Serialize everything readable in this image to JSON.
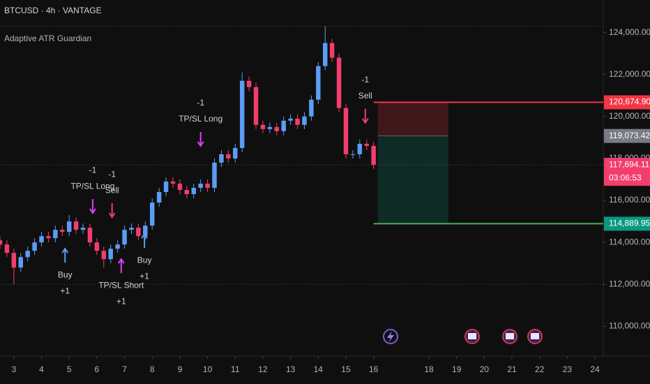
{
  "chart_data": {
    "type": "candlestick",
    "title": "BTCUSD · 4h · VANTAGE",
    "indicator": "Adaptive ATR Guardian",
    "x": [
      2.5,
      2.75,
      3,
      3.25,
      3.5,
      3.75,
      4,
      4.25,
      4.5,
      4.75,
      5,
      5.25,
      5.5,
      5.75,
      6,
      6.25,
      6.5,
      6.75,
      7,
      7.25,
      7.5,
      7.75,
      8,
      8.25,
      8.5,
      8.75,
      9,
      9.25,
      9.5,
      9.75,
      10,
      10.25,
      10.5,
      10.75,
      11,
      11.25,
      11.5,
      11.75,
      12,
      12.25,
      12.5,
      12.75,
      13,
      13.25,
      13.5,
      13.75,
      14,
      14.25,
      14.5,
      14.75,
      15,
      15.25,
      15.5,
      15.75,
      16
    ],
    "open": [
      114100,
      113900,
      113500,
      112800,
      113300,
      113600,
      114000,
      114300,
      114200,
      114600,
      114500,
      115000,
      114600,
      114700,
      114000,
      113600,
      113200,
      113700,
      113900,
      114600,
      114700,
      114300,
      114800,
      115900,
      116400,
      116900,
      116800,
      116500,
      116300,
      116600,
      116800,
      116600,
      117800,
      118200,
      118000,
      118500,
      121700,
      121400,
      119600,
      119400,
      119500,
      119300,
      119800,
      119900,
      119600,
      120000,
      120800,
      122400,
      123500,
      122800,
      120400,
      118200,
      118200,
      118700,
      118600
    ],
    "high": [
      114300,
      114100,
      113700,
      113500,
      113800,
      114200,
      114500,
      114500,
      114800,
      114800,
      115300,
      115200,
      114900,
      114900,
      114200,
      113800,
      113900,
      114100,
      114800,
      114900,
      114900,
      115000,
      116100,
      116600,
      117100,
      117100,
      117000,
      116700,
      116800,
      117000,
      117000,
      118000,
      118400,
      118400,
      118700,
      122100,
      121900,
      121600,
      119800,
      119700,
      119700,
      120000,
      120100,
      120100,
      120200,
      121000,
      122600,
      124300,
      123700,
      123000,
      120600,
      118400,
      118900,
      118900,
      118800
    ],
    "low": [
      113700,
      113300,
      112000,
      112600,
      113100,
      113400,
      113800,
      114000,
      114000,
      114300,
      114300,
      114400,
      114400,
      113800,
      113400,
      112800,
      113000,
      113500,
      113700,
      114400,
      114100,
      114100,
      114600,
      115700,
      116200,
      116600,
      116300,
      116100,
      116100,
      116400,
      116400,
      116400,
      117600,
      117800,
      117800,
      118300,
      121200,
      119400,
      119200,
      119200,
      119100,
      119100,
      119600,
      119400,
      119400,
      119800,
      120600,
      122200,
      122600,
      120200,
      118000,
      118000,
      118000,
      118400,
      117500
    ],
    "close": [
      113900,
      113500,
      112800,
      113300,
      113600,
      114000,
      114300,
      114200,
      114600,
      114500,
      115000,
      114600,
      114700,
      114000,
      113600,
      113200,
      113700,
      113900,
      114600,
      114700,
      114300,
      114800,
      115900,
      116400,
      116900,
      116800,
      116500,
      116300,
      116600,
      116800,
      116600,
      117800,
      118200,
      118000,
      118500,
      121700,
      121400,
      119600,
      119400,
      119500,
      119300,
      119800,
      119900,
      119600,
      120000,
      120800,
      122400,
      123500,
      122800,
      120400,
      118200,
      118200,
      118700,
      118600,
      117694.11
    ],
    "up_color": "#5b9cf6",
    "down_color": "#f23d6d",
    "xlim": [
      2.5,
      24.3
    ],
    "xticks": [
      3,
      4,
      5,
      6,
      7,
      8,
      9,
      10,
      11,
      12,
      13,
      14,
      15,
      16,
      18,
      19,
      20,
      21,
      22,
      23,
      24
    ],
    "ylim": [
      108750,
      125550
    ],
    "yticks": [
      {
        "value": 110000,
        "label": "110,000.00"
      },
      {
        "value": 112000,
        "label": "112,000.00"
      },
      {
        "value": 114000,
        "label": "114,000.00"
      },
      {
        "value": 116000,
        "label": "116,000.00"
      },
      {
        "value": 118000,
        "label": "118,000.00"
      },
      {
        "value": 120000,
        "label": "120,000.00"
      },
      {
        "value": 122000,
        "label": "122,000.00"
      },
      {
        "value": 124000,
        "label": "124,000.00"
      }
    ],
    "signals": [
      {
        "lines": [
          "Buy",
          "+1"
        ],
        "x": 4.85,
        "price": 113700,
        "direction": "up",
        "color": "#5b9cf6"
      },
      {
        "lines": [
          "-1",
          "TP/SL Long"
        ],
        "x": 5.85,
        "price": 115400,
        "direction": "down",
        "color": "#e040fb"
      },
      {
        "lines": [
          "-1",
          "Sell"
        ],
        "x": 6.55,
        "price": 115200,
        "direction": "down",
        "color": "#f23d6d"
      },
      {
        "lines": [
          "TP/SL Short",
          "+1"
        ],
        "x": 6.88,
        "price": 113200,
        "direction": "up",
        "color": "#e040fb"
      },
      {
        "lines": [
          "Buy",
          "+1"
        ],
        "x": 7.72,
        "price": 114400,
        "direction": "up",
        "color": "#5b9cf6"
      },
      {
        "lines": [
          "-1",
          "TP/SL Long"
        ],
        "x": 9.75,
        "price": 118600,
        "direction": "down",
        "color": "#e040fb"
      },
      {
        "lines": [
          "-1",
          "Sell"
        ],
        "x": 15.7,
        "price": 119700,
        "direction": "down",
        "color": "#f23d6d"
      }
    ],
    "position": {
      "start": 16.15,
      "end": 18.7,
      "stop": 120674.9,
      "stop_label": "120,674.90",
      "stop_color": "#f23645",
      "entry": 119073.42,
      "entry_label": "119,073.42",
      "entry_color": "#787b86",
      "target": 114889.95,
      "target_label": "114,889.95",
      "target_color": "#089981"
    },
    "last_price": {
      "value": 117694.11,
      "label": "117,694.11",
      "countdown": "03:06:53",
      "color": "#f23d6d"
    }
  }
}
